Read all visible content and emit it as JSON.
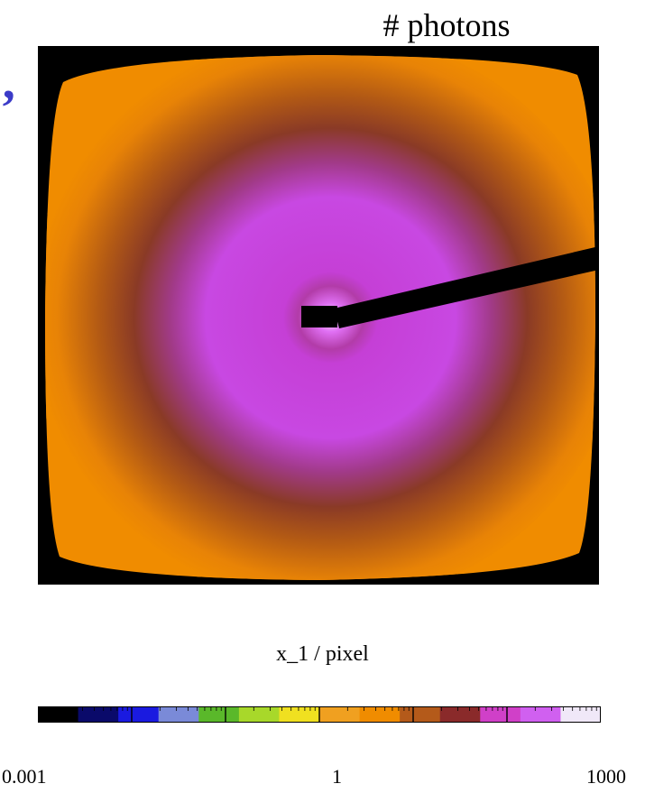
{
  "chart_data": {
    "type": "heatmap",
    "title": "# photons",
    "xlabel": "x_1 / pixel",
    "ylabel": "",
    "colorbar": {
      "scale": "log",
      "range": [
        0.001,
        1000
      ],
      "tick_labels": [
        "0.001",
        "1",
        "1000"
      ],
      "colors": [
        "#000000",
        "#0a0a6a",
        "#1a1ae0",
        "#7a8ad8",
        "#5ab82a",
        "#a8d82a",
        "#f0e020",
        "#f0a020",
        "#f08c00",
        "#b45a1a",
        "#8a2a2a",
        "#d040c8",
        "#d060f0",
        "#f0e8f8"
      ]
    },
    "image": {
      "background": "#000000",
      "outer_color": "#f08c00",
      "ring_color": "#8a3a1a",
      "inner_color": "#c840e0",
      "center_color": "#f8f0ff",
      "features": [
        "beamstop-arm",
        "detector-border"
      ]
    }
  },
  "decor": {
    "side_mark": "’"
  }
}
